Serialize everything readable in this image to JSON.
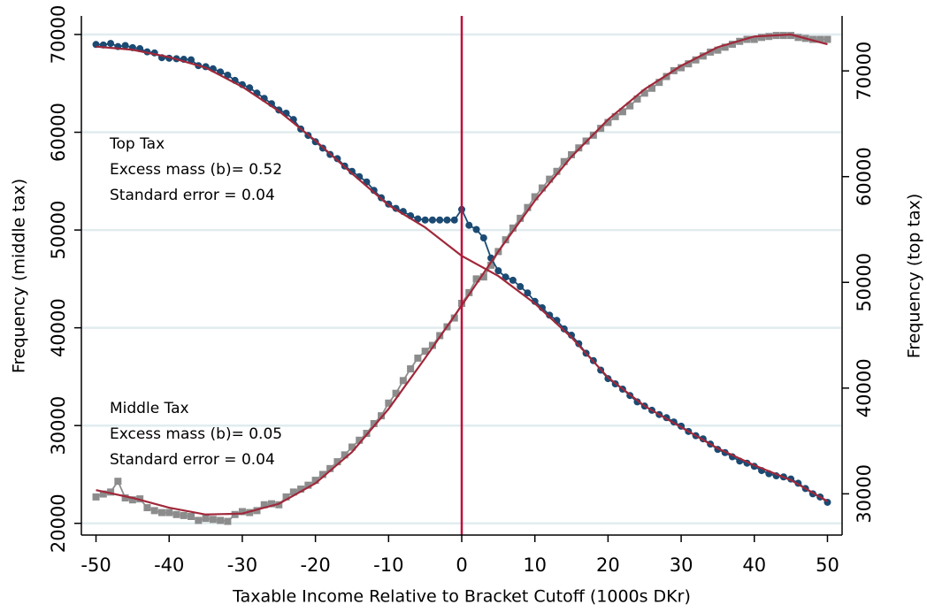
{
  "chart_data": {
    "type": "line",
    "xlabel": "Taxable Income Relative to Bracket Cutoff (1000s DKr)",
    "ylabel": "Frequency (middle tax)",
    "y2label": "Frequency (top tax)",
    "xlim": [
      -52,
      52
    ],
    "xticks": [
      -50,
      -40,
      -30,
      -20,
      -10,
      0,
      10,
      20,
      30,
      40,
      50
    ],
    "ylim": [
      18800,
      71900
    ],
    "yticks": [
      20000,
      30000,
      40000,
      50000,
      60000,
      70000
    ],
    "y2lim": [
      26100,
      75200
    ],
    "y2ticks": [
      30000,
      40000,
      50000,
      60000,
      70000
    ],
    "grid": true,
    "vline": 0,
    "vline_color": "#c0103a",
    "x": [
      -50,
      -49,
      -48,
      -47,
      -46,
      -45,
      -44,
      -43,
      -42,
      -41,
      -40,
      -39,
      -38,
      -37,
      -36,
      -35,
      -34,
      -33,
      -32,
      -31,
      -30,
      -29,
      -28,
      -27,
      -26,
      -25,
      -24,
      -23,
      -22,
      -21,
      -20,
      -19,
      -18,
      -17,
      -16,
      -15,
      -14,
      -13,
      -12,
      -11,
      -10,
      -9,
      -8,
      -7,
      -6,
      -5,
      -4,
      -3,
      -2,
      -1,
      0,
      1,
      2,
      3,
      4,
      5,
      6,
      7,
      8,
      9,
      10,
      11,
      12,
      13,
      14,
      15,
      16,
      17,
      18,
      19,
      20,
      21,
      22,
      23,
      24,
      25,
      26,
      27,
      28,
      29,
      30,
      31,
      32,
      33,
      34,
      35,
      36,
      37,
      38,
      39,
      40,
      41,
      42,
      43,
      44,
      45,
      46,
      47,
      48,
      49,
      50
    ],
    "series": [
      {
        "name": "Middle Tax",
        "color": "#8c8c8c",
        "marker": "square",
        "values": [
          22700,
          23000,
          23200,
          24300,
          22600,
          22400,
          22500,
          21600,
          21300,
          21100,
          21100,
          20900,
          20800,
          20700,
          20300,
          20500,
          20400,
          20300,
          20200,
          20900,
          21200,
          21100,
          21300,
          21900,
          22000,
          21900,
          22700,
          23200,
          23500,
          23900,
          24400,
          25000,
          25600,
          26300,
          27000,
          27800,
          28500,
          29200,
          30200,
          31000,
          32300,
          33300,
          34600,
          35800,
          36900,
          37600,
          38200,
          39200,
          40100,
          41000,
          42500,
          43600,
          45000,
          45200,
          46400,
          47800,
          49000,
          50200,
          51200,
          52300,
          53400,
          54300,
          55200,
          56000,
          57000,
          57700,
          58400,
          59100,
          59700,
          60400,
          61000,
          61600,
          62100,
          62700,
          63400,
          64000,
          64500,
          65100,
          65700,
          66300,
          66600,
          67000,
          67400,
          67800,
          68200,
          68400,
          68700,
          69000,
          69300,
          69500,
          69500,
          69700,
          69800,
          69900,
          69900,
          69900,
          69700,
          69600,
          69500,
          69500,
          69500
        ]
      },
      {
        "name": "Top Tax",
        "color": "#1b4a72",
        "marker": "circle",
        "axis": "y2",
        "values": [
          72500,
          72450,
          72600,
          72300,
          72400,
          72200,
          72100,
          71800,
          71700,
          71250,
          71200,
          71150,
          71100,
          71050,
          70500,
          70400,
          70200,
          69900,
          69600,
          69100,
          68700,
          68400,
          67900,
          67400,
          66900,
          66300,
          66000,
          65400,
          64500,
          63900,
          63300,
          62700,
          62100,
          61700,
          61000,
          60500,
          60000,
          59500,
          58700,
          58000,
          57400,
          57000,
          56700,
          56300,
          56000,
          55900,
          55900,
          55900,
          55900,
          55900,
          56900,
          55400,
          55000,
          54200,
          52300,
          51100,
          50500,
          50200,
          49600,
          49000,
          48200,
          47600,
          46900,
          46400,
          45600,
          45000,
          44200,
          43300,
          42600,
          41700,
          40900,
          40400,
          39900,
          39300,
          38700,
          38300,
          37900,
          37500,
          37200,
          36800,
          36400,
          35900,
          35500,
          35200,
          34700,
          34200,
          33900,
          33500,
          33100,
          32900,
          32600,
          32200,
          31900,
          31700,
          31600,
          31400,
          31000,
          30500,
          30000,
          29700,
          29200
        ]
      },
      {
        "color": "#a0283a",
        "x": [
          -50,
          -45,
          -40,
          -35,
          -30,
          -25,
          -20,
          -15,
          -10,
          -5,
          0,
          5,
          10,
          15,
          20,
          25,
          30,
          35,
          40,
          45,
          50
        ],
        "values": [
          23400,
          22600,
          21600,
          20900,
          21000,
          22000,
          24100,
          27300,
          31700,
          36900,
          42300,
          47800,
          53000,
          57500,
          61300,
          64400,
          66800,
          68700,
          69800,
          70000,
          69000
        ]
      },
      {
        "color": "#a0283a",
        "axis": "y2",
        "x": [
          -50,
          -45,
          -40,
          -35,
          -30,
          -25,
          -20,
          -15,
          -10,
          -5,
          0,
          5,
          10,
          15,
          20,
          25,
          30,
          35,
          40,
          45,
          50
        ],
        "values": [
          72300,
          72000,
          71300,
          70300,
          68500,
          66200,
          63400,
          60300,
          57300,
          55200,
          52500,
          50600,
          48000,
          44800,
          41000,
          38300,
          36300,
          34300,
          32700,
          31300,
          29300
        ]
      }
    ],
    "annotations": [
      {
        "color": "#1b4a72",
        "lines": [
          "Top Tax",
          "Excess mass (b)= 0.52",
          "Standard error = 0.04"
        ]
      },
      {
        "color": "#000000",
        "lines": [
          "Middle Tax",
          "Excess mass (b)= 0.05",
          "Standard error = 0.04"
        ]
      }
    ]
  }
}
